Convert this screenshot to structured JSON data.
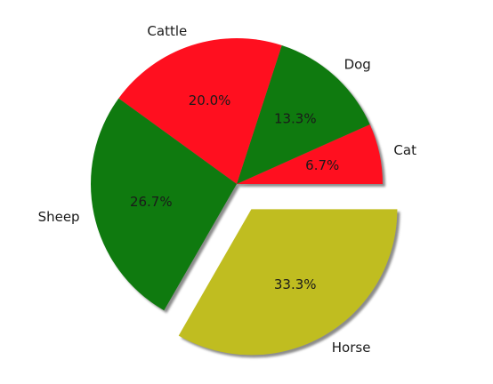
{
  "chart_data": {
    "type": "pie",
    "title": "",
    "start_angle_deg": 0,
    "direction": "counterclockwise",
    "shadow": true,
    "slices": [
      {
        "label": "Cat",
        "value": 6.7,
        "pct_text": "6.7%",
        "color": "#ff0f1f",
        "explode": false
      },
      {
        "label": "Dog",
        "value": 13.3,
        "pct_text": "13.3%",
        "color": "#0f7a0f",
        "explode": false
      },
      {
        "label": "Cattle",
        "value": 20.0,
        "pct_text": "20.0%",
        "color": "#ff0f1f",
        "explode": false
      },
      {
        "label": "Sheep",
        "value": 26.7,
        "pct_text": "26.7%",
        "color": "#0f7a0f",
        "explode": false
      },
      {
        "label": "Horse",
        "value": 33.3,
        "pct_text": "33.3%",
        "color": "#c0bd20",
        "explode": true
      }
    ]
  }
}
